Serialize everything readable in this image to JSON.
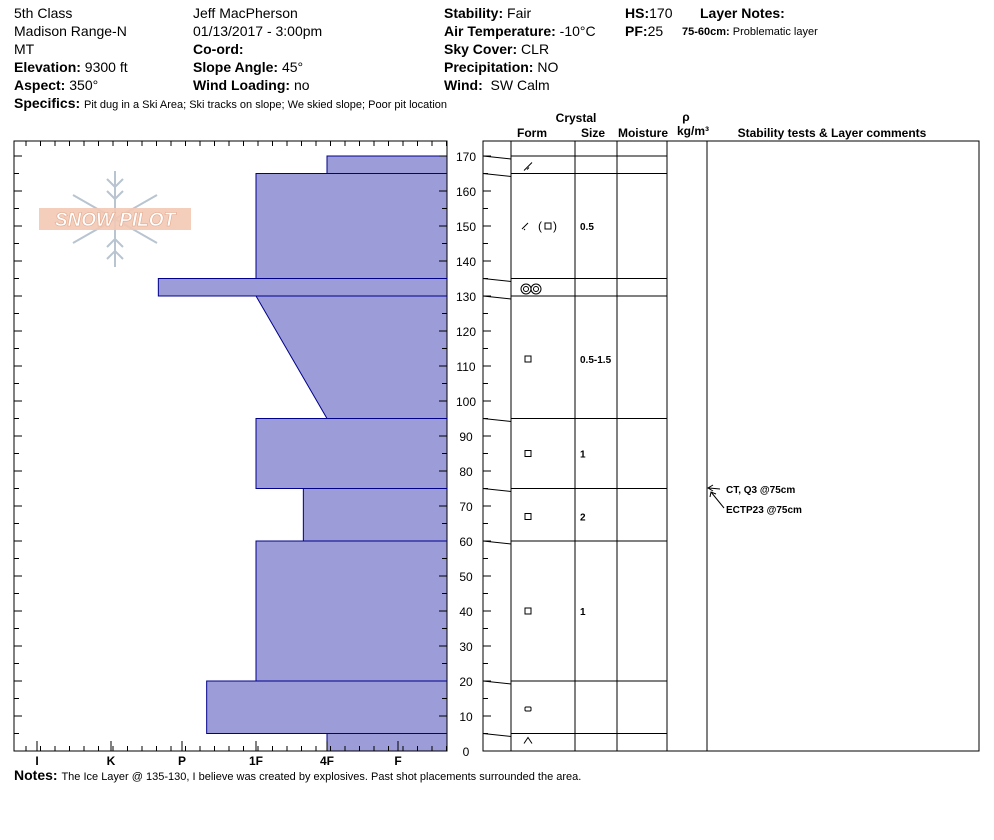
{
  "header": {
    "c1": [
      "5th Class",
      "Madison Range-N",
      "MT"
    ],
    "elevation_label": "Elevation:",
    "elevation": "9300 ft",
    "aspect_label": "Aspect:",
    "aspect": "350°",
    "observer": "Jeff MacPherson",
    "datetime": "01/13/2017 - 3:00pm",
    "coord_label": "Co-ord:",
    "slope_label": "Slope Angle:",
    "slope": "45°",
    "wind_loading_label": "Wind Loading:",
    "wind_loading": "no",
    "stability_label": "Stability:",
    "stability": "Fair",
    "air_temp_label": "Air Temperature:",
    "air_temp": "-10°C",
    "sky_label": "Sky Cover:",
    "sky": "CLR",
    "precip_label": "Precipitation:",
    "precip": "NO",
    "wind_label": "Wind:",
    "wind": "SW Calm",
    "hs_label": "HS:",
    "hs": "170",
    "pf_label": "PF:",
    "pf": "25",
    "layer_notes_label": "Layer Notes:",
    "layer_note_depth": "75-60cm:",
    "layer_note_text": "Problematic layer",
    "specifics_label": "Specifics:",
    "specifics": "Pit dug in a Ski Area; Ski tracks on slope; We skied slope; Poor pit location"
  },
  "notes_label": "Notes:",
  "notes": "The Ice Layer @ 135-130, I believe was created by explosives.   Past shot placements surrounded the area.",
  "logo_text": "SNOW PILOT",
  "columns": {
    "crystal": "Crystal",
    "form": "Form",
    "size": "Size",
    "moisture": "Moisture",
    "rho": "ρ",
    "density_unit": "kg/m³",
    "stability": "Stability tests & Layer comments"
  },
  "hardness_axis": [
    "I",
    "K",
    "P",
    "1F",
    "4F",
    "F"
  ],
  "colors": {
    "profile_fill": "#9c9cd8",
    "profile_stroke": "#00008b"
  },
  "chart_data": {
    "type": "area",
    "title": "",
    "xlabel": "",
    "ylabel": "",
    "x_categories_hardness": [
      "F",
      "4F",
      "1F",
      "P",
      "K",
      "I"
    ],
    "ylim": [
      0,
      170
    ],
    "y_ticks": [
      0,
      10,
      20,
      30,
      40,
      50,
      60,
      70,
      80,
      90,
      100,
      110,
      120,
      130,
      140,
      150,
      160,
      170
    ],
    "hardness_profile": [
      {
        "top": 170,
        "bottom": 165,
        "hardness": "4F"
      },
      {
        "top": 165,
        "bottom": 135,
        "hardness": "1F"
      },
      {
        "top": 135,
        "bottom": 130,
        "hardness": "P+"
      },
      {
        "top": 130,
        "bottom": 95,
        "hardness_top": "1F",
        "hardness_bottom": "4F"
      },
      {
        "top": 95,
        "bottom": 75,
        "hardness": "1F"
      },
      {
        "top": 75,
        "bottom": 60,
        "hardness": "4F+"
      },
      {
        "top": 60,
        "bottom": 20,
        "hardness": "1F"
      },
      {
        "top": 20,
        "bottom": 5,
        "hardness": "P-"
      },
      {
        "top": 5,
        "bottom": 0,
        "hardness": "4F"
      }
    ],
    "layer_boundaries": [
      170,
      165,
      135,
      130,
      95,
      75,
      60,
      20,
      5
    ],
    "layers": [
      {
        "mid": 167,
        "form": "decomposing",
        "size": ""
      },
      {
        "mid": 150,
        "form": "decomposing (faceted)",
        "size": "0.5"
      },
      {
        "mid": 132,
        "form": "ice",
        "size": ""
      },
      {
        "mid": 112,
        "form": "faceted",
        "size": "0.5-1.5"
      },
      {
        "mid": 85,
        "form": "faceted",
        "size": "1"
      },
      {
        "mid": 67,
        "form": "faceted",
        "size": "2"
      },
      {
        "mid": 40,
        "form": "faceted",
        "size": "1"
      },
      {
        "mid": 12,
        "form": "rounding faceted",
        "size": ""
      },
      {
        "mid": 3,
        "form": "depth hoar",
        "size": ""
      }
    ],
    "stability_tests": [
      {
        "depth": 75,
        "label": "CT, Q3 @75cm"
      },
      {
        "depth": 75,
        "label": "ECTP23 @75cm"
      }
    ]
  }
}
